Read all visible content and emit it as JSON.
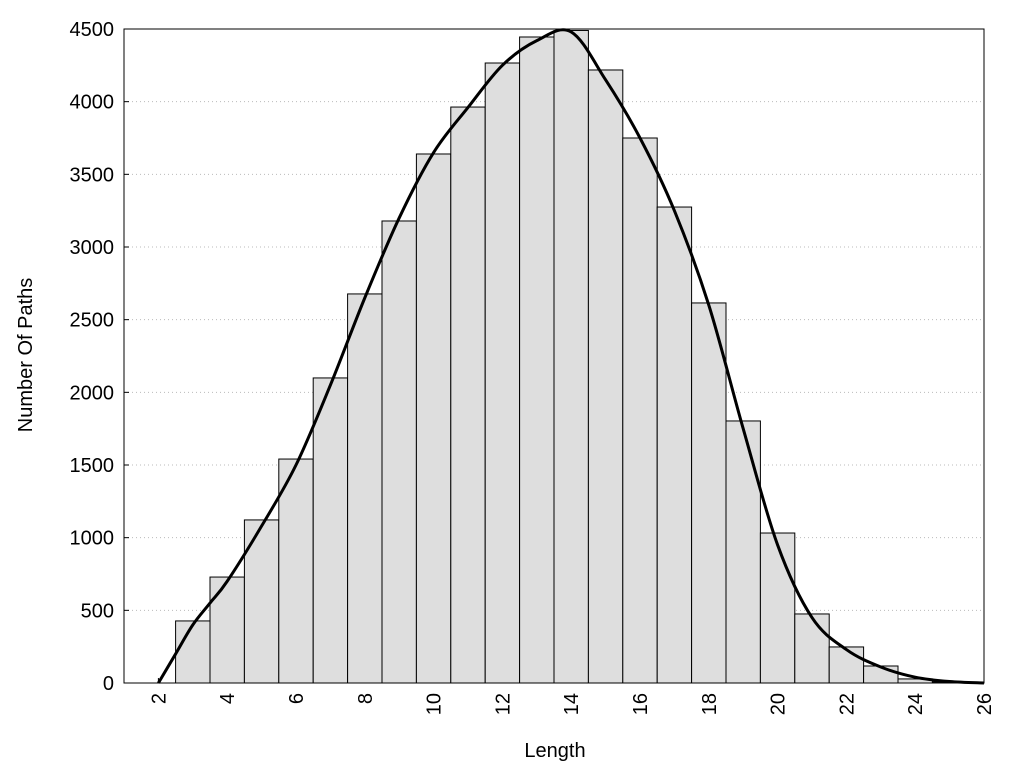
{
  "chart_data": {
    "type": "histogram",
    "xlabel": "Length",
    "ylabel": "Number Of Paths",
    "bins": [
      2.5,
      3.5,
      4.5,
      5.5,
      6.5,
      7.5,
      8.5,
      9.5,
      10.5,
      11.5,
      12.5,
      13.5,
      14.5,
      15.5,
      16.5,
      17.5,
      18.5,
      19.5,
      20.5,
      21.5,
      22.5,
      23.5,
      24.5,
      25.5
    ],
    "values": [
      427,
      729,
      1122,
      1541,
      2099,
      2677,
      3179,
      3640,
      3963,
      4266,
      4445,
      4490,
      4218,
      3750,
      3275,
      2615,
      1803,
      1032,
      475,
      248,
      117,
      28,
      7
    ],
    "color": "#dedede",
    "curve": {
      "x": [
        2,
        2.5,
        3,
        3.5,
        4,
        5,
        6,
        7,
        8,
        9,
        10,
        11,
        12,
        13,
        14,
        15,
        16,
        17,
        18,
        19,
        20,
        21,
        22,
        23,
        24,
        25,
        26
      ],
      "values": [
        0,
        200,
        400,
        550,
        700,
        1080,
        1500,
        2050,
        2650,
        3200,
        3650,
        3960,
        4250,
        4420,
        4480,
        4150,
        3750,
        3250,
        2600,
        1750,
        950,
        450,
        230,
        110,
        40,
        10,
        0
      ],
      "color": "#000000"
    },
    "xlim": [
      1,
      26
    ],
    "xticks": [
      2,
      4,
      6,
      8,
      10,
      12,
      14,
      16,
      18,
      20,
      22,
      24,
      26
    ],
    "ylim": [
      0,
      4500
    ],
    "yticks": [
      0,
      500,
      1000,
      1500,
      2000,
      2500,
      3000,
      3500,
      4000,
      4500
    ],
    "grid": true
  }
}
